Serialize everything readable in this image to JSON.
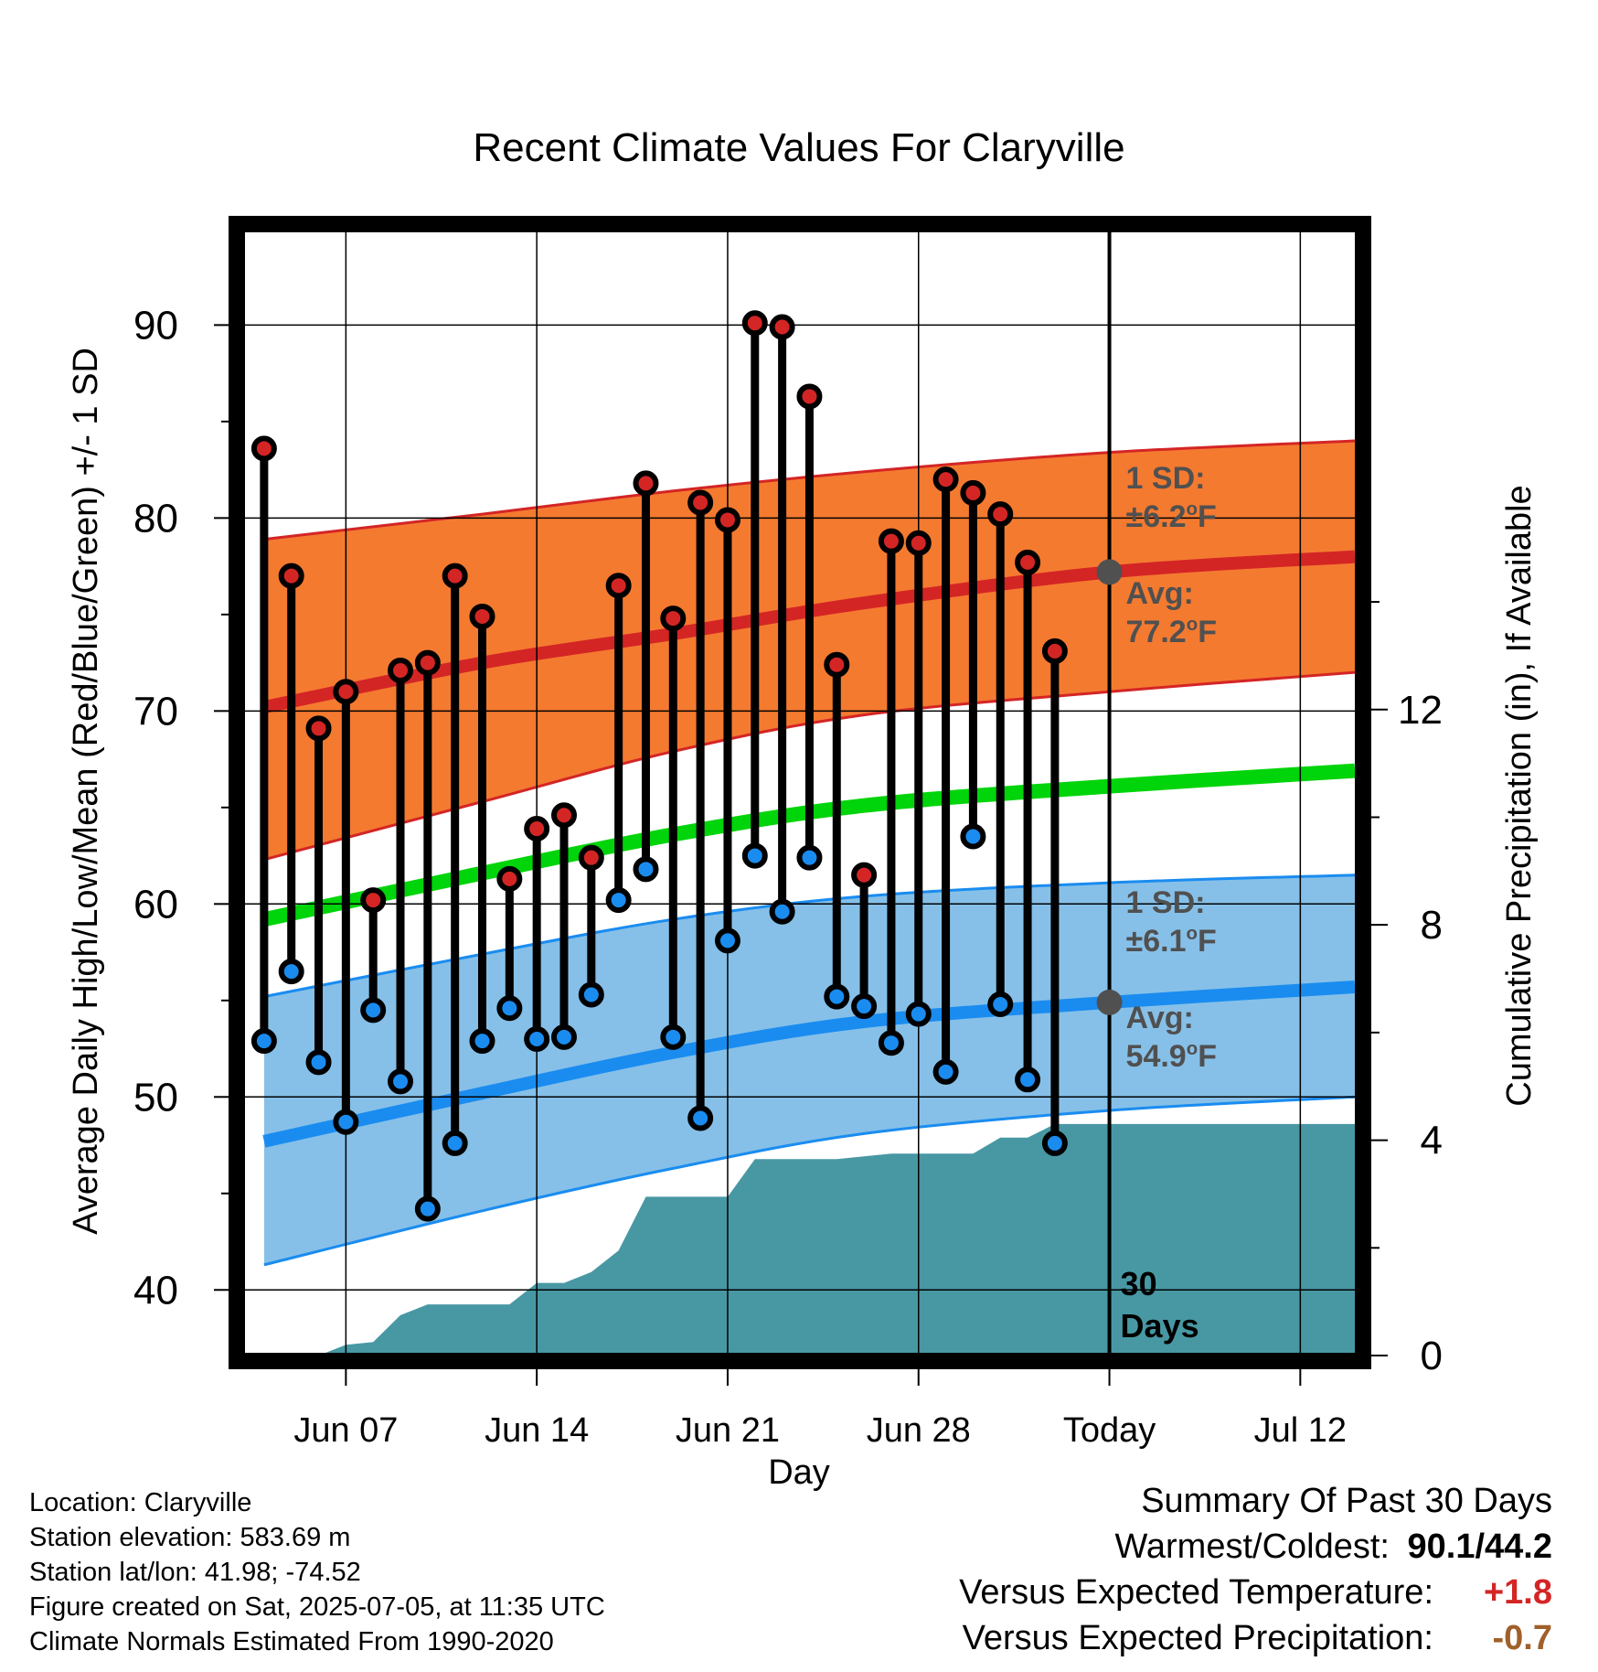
{
  "colors": {
    "high_band": "#f47a30",
    "high_band_edge": "#d42525",
    "high_avg_line": "#d42525",
    "low_band": "#86c0e8",
    "low_band_edge": "#1a8cf0",
    "low_avg_line": "#1a8cf0",
    "mean_line": "#00d40a",
    "precip_fill": "#4898a4",
    "high_marker": "#d42525",
    "low_marker": "#1a8cf0",
    "annotation_text": "#505050",
    "temp_anomaly": "#d42525",
    "precip_anomaly": "#a0602a"
  },
  "chart_data": {
    "type": "line",
    "title": "Recent Climate Values For Claryville",
    "xlabel": "Day",
    "ylabel": "Average Daily High/Low/Mean (Red/Blue/Green) +/- 1 SD",
    "y2label": "Cumulative Precipitation (in), If Available",
    "x_tick_labels": [
      "Jun 07",
      "Jun 14",
      "Jun 21",
      "Jun 28",
      "Today",
      "Jul 12"
    ],
    "x_tick_days": [
      6,
      13,
      20,
      27,
      34,
      41
    ],
    "today_day": 34,
    "xlim": [
      2.3,
      43
    ],
    "ylim": [
      36.6,
      94.9
    ],
    "y_ticks": [
      40,
      50,
      60,
      70,
      80,
      90
    ],
    "y2lim": [
      0,
      20.9
    ],
    "y2_ticks": [
      0,
      4,
      8,
      12
    ],
    "grid": true,
    "days": [
      3,
      4,
      5,
      6,
      7,
      8,
      9,
      10,
      11,
      12,
      13,
      14,
      15,
      16,
      17,
      18,
      19,
      20,
      21,
      22,
      23,
      24,
      25,
      26,
      27,
      28,
      29,
      30,
      31,
      32,
      33
    ],
    "daily_high": [
      83.6,
      77.0,
      69.1,
      71.0,
      60.2,
      72.1,
      72.5,
      77.0,
      74.9,
      61.3,
      63.9,
      64.6,
      62.4,
      76.5,
      81.8,
      74.8,
      80.8,
      79.9,
      90.1,
      89.9,
      86.3,
      72.4,
      61.5,
      78.8,
      78.7,
      82.0,
      81.3,
      80.2,
      77.7,
      73.1,
      null
    ],
    "daily_low": [
      52.9,
      56.5,
      51.8,
      48.7,
      54.5,
      50.8,
      44.2,
      47.6,
      52.9,
      54.6,
      53.0,
      53.1,
      55.3,
      60.2,
      61.8,
      53.1,
      48.9,
      58.1,
      62.5,
      59.6,
      62.4,
      55.2,
      54.7,
      52.8,
      54.3,
      51.3,
      63.5,
      54.8,
      50.9,
      47.6,
      null
    ],
    "series": [
      {
        "name": "high_normal",
        "x": [
          3,
          11,
          18,
          25,
          34,
          43
        ],
        "values": [
          70.2,
          72.5,
          74.0,
          75.6,
          77.2,
          78.0
        ]
      },
      {
        "name": "high_plus_1sd",
        "x": [
          3,
          11,
          18,
          25,
          34,
          43
        ],
        "values": [
          78.9,
          80.2,
          81.4,
          82.4,
          83.4,
          84.0
        ]
      },
      {
        "name": "high_minus_1sd",
        "x": [
          3,
          11,
          18,
          25,
          34,
          43
        ],
        "values": [
          62.3,
          65.3,
          67.9,
          69.8,
          71.0,
          72.0
        ]
      },
      {
        "name": "mean_normal",
        "x": [
          3,
          11,
          18,
          25,
          34,
          43
        ],
        "values": [
          59.2,
          61.6,
          63.6,
          65.1,
          66.1,
          66.9
        ]
      },
      {
        "name": "low_normal",
        "x": [
          3,
          11,
          18,
          25,
          34,
          43
        ],
        "values": [
          47.7,
          50.2,
          52.3,
          53.9,
          54.9,
          55.7
        ]
      },
      {
        "name": "low_plus_1sd",
        "x": [
          3,
          11,
          18,
          25,
          34,
          43
        ],
        "values": [
          55.2,
          57.4,
          59.2,
          60.4,
          61.1,
          61.5
        ]
      },
      {
        "name": "low_minus_1sd",
        "x": [
          3,
          11,
          18,
          25,
          34,
          43
        ],
        "values": [
          41.3,
          44.1,
          46.3,
          48.1,
          49.3,
          50.0
        ]
      }
    ],
    "precip_cumulative": {
      "x": [
        5,
        6,
        7,
        8,
        9,
        10,
        11,
        12,
        13,
        14,
        15,
        16,
        17,
        18,
        19,
        20,
        21,
        22,
        23,
        24,
        25,
        26,
        27,
        28,
        29,
        30,
        31,
        32,
        33,
        34,
        43
      ],
      "values": [
        0.0,
        0.2,
        0.25,
        0.75,
        0.95,
        0.95,
        0.95,
        0.95,
        1.35,
        1.35,
        1.55,
        1.95,
        2.95,
        2.95,
        2.95,
        2.95,
        3.65,
        3.65,
        3.65,
        3.65,
        3.7,
        3.75,
        3.75,
        3.75,
        3.75,
        4.05,
        4.05,
        4.3,
        4.3,
        4.3,
        4.3
      ]
    },
    "annotations": {
      "high_sd_label": "1 SD:",
      "high_sd_value": "±6.2",
      "low_sd_label": "1 SD:",
      "low_sd_value": "±6.1",
      "high_avg_label": "Avg:",
      "high_avg_value": "77.2",
      "low_avg_label": "Avg:",
      "low_avg_value": "54.9",
      "deg_symbol": "o",
      "deg_unit": "F",
      "days_number": "30",
      "days_word": "Days"
    }
  },
  "footer": {
    "location": "Location: Claryville",
    "elevation": "Station elevation: 583.69 m",
    "latlon": "Station lat/lon: 41.98; -74.52",
    "created": "Figure created on Sat, 2025-07-05, at 11:35 UTC",
    "normals": "Climate Normals Estimated From 1990-2020"
  },
  "summary": {
    "title": "Summary Of Past 30 Days",
    "warm_cold_label": "Warmest/Coldest:",
    "warm_cold_value": "90.1/44.2",
    "temp_label": "Versus Expected Temperature:",
    "temp_value": "+1.8",
    "precip_label": "Versus Expected Precipitation:",
    "precip_value": "-0.7"
  }
}
